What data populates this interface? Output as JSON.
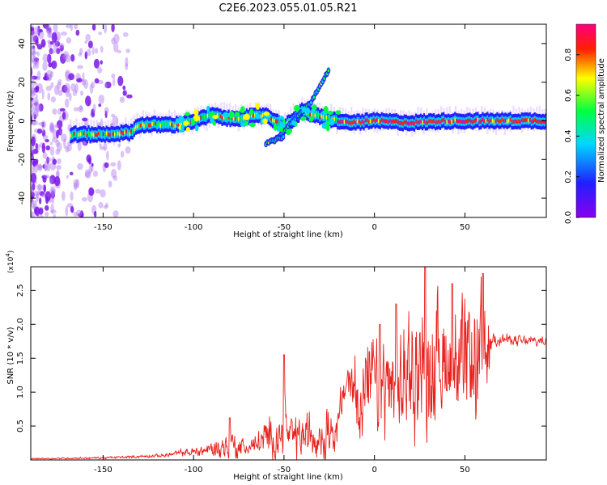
{
  "title": "C2E6.2023.055.01.05.R21",
  "chart_data": [
    {
      "type": "heatmap",
      "xlabel": "Height of straight line (km)",
      "ylabel": "Frequency (Hz)",
      "xlim": [
        -190,
        95
      ],
      "ylim": [
        -50,
        50
      ],
      "xticks": [
        "-150",
        "-100",
        "-50",
        "0",
        "50"
      ],
      "yticks": [
        "-40",
        "-20",
        "0",
        "20",
        "40"
      ],
      "colorbar": {
        "label": "Normalized spectral amplitude",
        "range": [
          0,
          0.95
        ],
        "ticks": [
          "0.0",
          "0.2",
          "0.4",
          "0.6",
          "0.8"
        ],
        "colors": [
          "#8800ee",
          "#2020ff",
          "#00d8ff",
          "#00ff40",
          "#ffff00",
          "#ff2000",
          "#ff0080"
        ]
      },
      "ridge": {
        "x": [
          -168,
          -150,
          -135,
          -130,
          -110,
          -100,
          -90,
          -80,
          -70,
          -60,
          -50,
          -40,
          -30,
          -25,
          -15,
          0,
          20,
          40,
          60,
          95
        ],
        "y": [
          -7,
          -7,
          -6,
          -2,
          -2,
          0,
          3,
          1,
          2,
          3,
          -3,
          5,
          2,
          1,
          -1,
          0,
          -1,
          0,
          0,
          0
        ]
      },
      "branches": [
        {
          "x": [
            -55,
            -45,
            -35,
            -25
          ],
          "y": [
            -10,
            0,
            10,
            27
          ]
        },
        {
          "x": [
            -60,
            -50
          ],
          "y": [
            -12,
            -8
          ]
        }
      ]
    },
    {
      "type": "line",
      "xlabel": "Height of straight line (km)",
      "ylabel": "SNR (10 * v/v)",
      "y_multiplier": "(x10",
      "y_multiplier_exp": "4",
      "xlim": [
        -190,
        95
      ],
      "ylim": [
        0,
        2.85
      ],
      "xticks": [
        "-150",
        "-100",
        "-50",
        "0",
        "50"
      ],
      "yticks": [
        "0.5",
        "1.0",
        "1.5",
        "2.0",
        "2.5"
      ],
      "color": "#e8211c",
      "envelope": {
        "x": [
          -190,
          -150,
          -120,
          -100,
          -90,
          -80,
          -70,
          -60,
          -50,
          -40,
          -30,
          -20,
          -15,
          -10,
          0,
          10,
          20,
          30,
          40,
          50,
          60,
          65,
          80,
          95
        ],
        "mean": [
          0.02,
          0.03,
          0.06,
          0.12,
          0.16,
          0.2,
          0.18,
          0.3,
          0.35,
          0.35,
          0.4,
          0.55,
          1.2,
          1.0,
          1.1,
          1.0,
          1.3,
          1.4,
          1.5,
          1.3,
          1.4,
          1.8,
          1.75,
          1.75
        ],
        "amp": [
          0.01,
          0.02,
          0.03,
          0.08,
          0.15,
          0.3,
          0.12,
          0.35,
          0.4,
          0.4,
          0.6,
          0.45,
          0.3,
          0.8,
          0.9,
          1.0,
          1.1,
          1.3,
          1.1,
          1.2,
          1.3,
          0.12,
          0.1,
          0.1
        ]
      },
      "peaks": [
        {
          "x": -80,
          "y": 0.62
        },
        {
          "x": -50,
          "y": 1.55
        },
        {
          "x": 3,
          "y": 2.0
        },
        {
          "x": 12,
          "y": 2.3
        },
        {
          "x": 28,
          "y": 2.85
        },
        {
          "x": 43,
          "y": 2.6
        },
        {
          "x": 60,
          "y": 2.75
        }
      ]
    }
  ]
}
